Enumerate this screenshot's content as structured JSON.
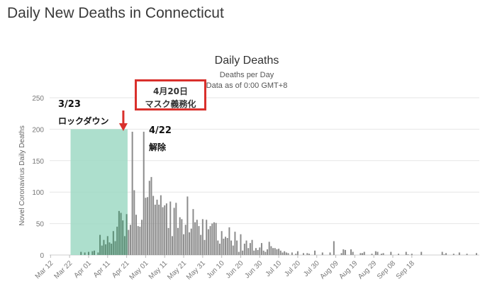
{
  "page": {
    "title": "Daily New Deaths in Connecticut"
  },
  "colors": {
    "bar": "#8c8c8c",
    "bar_highlight": "#5f8f78",
    "lockdown_shade": "#9fd9c4",
    "annotation_border": "#d9302c",
    "arrow": "#d9302c",
    "grid": "#e6e6e6",
    "axis_text": "#777777"
  },
  "annotations": {
    "lockdown_date": "3/23",
    "lockdown_label": "ロックダウン",
    "mask_date": "4月20日",
    "mask_label": "マスク義務化",
    "lift_date": "4/22",
    "lift_label": "解除"
  },
  "chart_data": {
    "type": "bar",
    "title": "Daily Deaths",
    "subtitle": "Deaths per Day",
    "subtitle2": "Data as of 0:00 GMT+8",
    "ylabel": "Novel Coronavirus Daily Deaths",
    "xlabel": "",
    "ylim": [
      0,
      250
    ],
    "yticks": [
      0,
      50,
      100,
      150,
      200,
      250
    ],
    "grid": true,
    "x_tick_labels": [
      "Mar 12",
      "Mar 22",
      "Apr 01",
      "Apr 11",
      "Apr 21",
      "May 01",
      "May 11",
      "May 21",
      "May 31",
      "Jun 10",
      "Jun 20",
      "Jun 30",
      "Jul 10",
      "Jul 20",
      "Jul 30",
      "Aug 09",
      "Aug 19",
      "Aug 29",
      "Sep 08",
      "Sep 18"
    ],
    "start_date": "Mar 12",
    "values": [
      0,
      0,
      0,
      0,
      0,
      0,
      0,
      0,
      0,
      0,
      0,
      0,
      0,
      0,
      0,
      0,
      5,
      0,
      4,
      0,
      5,
      0,
      6,
      7,
      0,
      4,
      32,
      15,
      24,
      17,
      30,
      20,
      18,
      38,
      22,
      45,
      70,
      67,
      55,
      30,
      65,
      40,
      48,
      196,
      103,
      64,
      46,
      45,
      56,
      196,
      91,
      92,
      118,
      124,
      94,
      80,
      88,
      80,
      95,
      76,
      79,
      82,
      43,
      85,
      30,
      75,
      83,
      43,
      60,
      57,
      33,
      48,
      93,
      36,
      42,
      73,
      52,
      56,
      46,
      32,
      57,
      24,
      56,
      41,
      46,
      50,
      52,
      51,
      23,
      18,
      38,
      26,
      29,
      27,
      44,
      23,
      15,
      37,
      23,
      5,
      33,
      7,
      18,
      23,
      11,
      19,
      24,
      7,
      11,
      8,
      12,
      19,
      7,
      5,
      9,
      21,
      14,
      11,
      11,
      9,
      10,
      7,
      4,
      6,
      4,
      3,
      0,
      4,
      0,
      2,
      6,
      0,
      0,
      3,
      0,
      3,
      2,
      0,
      0,
      7,
      0,
      0,
      0,
      4,
      0,
      0,
      0,
      4,
      0,
      22,
      0,
      0,
      0,
      3,
      9,
      8,
      0,
      0,
      9,
      5,
      0,
      0,
      0,
      3,
      3,
      5,
      0,
      0,
      0,
      2,
      0,
      6,
      5,
      0,
      2,
      3,
      0,
      0,
      0,
      5,
      0,
      0,
      0,
      2,
      0,
      0,
      0,
      5,
      1,
      0,
      2,
      0,
      0,
      0,
      0,
      5,
      0,
      0,
      0,
      0,
      0,
      0,
      0,
      0,
      0,
      0,
      5,
      1,
      3,
      0,
      0,
      0,
      2,
      0,
      0,
      4,
      0,
      0,
      0,
      2,
      0,
      0,
      0,
      0,
      3
    ],
    "highlight_range": [
      "Mar 23",
      "Apr 22"
    ],
    "reference_marker": "Apr 20"
  }
}
